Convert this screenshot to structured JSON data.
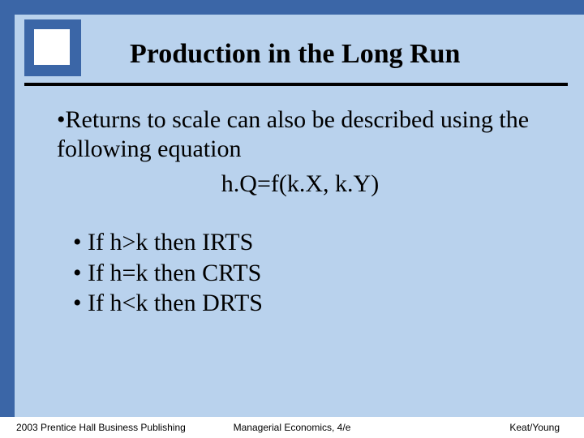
{
  "colors": {
    "background": "#b9d2ed",
    "band": "#3b66a7",
    "logo_inner": "#ffffff",
    "underline": "#000000",
    "text": "#000000",
    "footer_bg": "#ffffff"
  },
  "title": "Production in the Long Run",
  "body": {
    "intro_bullet": "•",
    "intro": "Returns to scale can also be described using the following equation",
    "equation": "h.Q=f(k.X, k.Y)",
    "conditions": [
      "If h>k then IRTS",
      "If h=k then CRTS",
      "If h<k then DRTS"
    ]
  },
  "footer": {
    "left": "2003 Prentice Hall Business Publishing",
    "center": "Managerial Economics, 4/e",
    "right": "Keat/Young"
  }
}
